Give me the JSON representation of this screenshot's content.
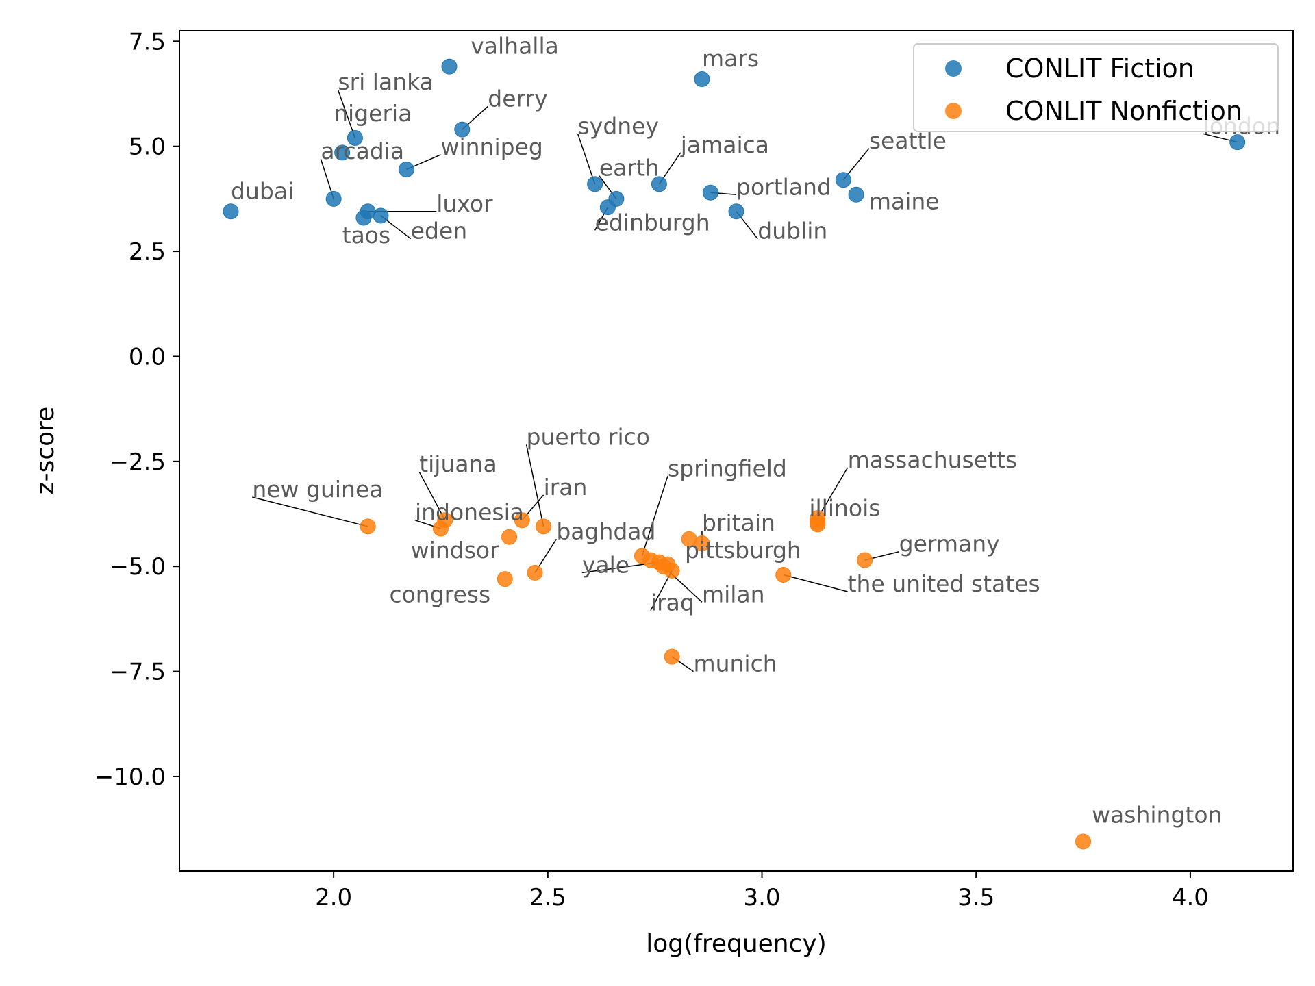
{
  "chart_data": {
    "type": "scatter",
    "title": "",
    "xlabel": "log(frequency)",
    "ylabel": "z-score",
    "xlim": [
      1.64,
      4.24
    ],
    "ylim": [
      -12.25,
      7.75
    ],
    "xticks": [
      2.0,
      2.5,
      3.0,
      3.5,
      4.0
    ],
    "yticks": [
      7.5,
      5.0,
      2.5,
      0.0,
      -2.5,
      -5.0,
      -7.5,
      -10.0
    ],
    "xtick_labels": [
      "2.0",
      "2.5",
      "3.0",
      "3.5",
      "4.0"
    ],
    "ytick_labels": [
      "7.5",
      "5.0",
      "2.5",
      "0.0",
      "−2.5",
      "−5.0",
      "−7.5",
      "−10.0"
    ],
    "grid": false,
    "legend_position": "top-right",
    "series": [
      {
        "name": "CONLIT Fiction",
        "color": "#1f77b4",
        "points": [
          {
            "label": "valhalla",
            "x": 2.27,
            "y": 6.9,
            "lx": 2.32,
            "ly": 7.2
          },
          {
            "label": "mars",
            "x": 2.86,
            "y": 6.6,
            "lx": 2.86,
            "ly": 6.9
          },
          {
            "label": "sri lanka",
            "x": 2.05,
            "y": 5.2,
            "lx": 2.01,
            "ly": 6.35,
            "lead": true
          },
          {
            "label": "derry",
            "x": 2.3,
            "y": 5.4,
            "lx": 2.36,
            "ly": 5.95,
            "lead": true
          },
          {
            "label": "nigeria",
            "x": 2.02,
            "y": 4.85,
            "lx": 2.0,
            "ly": 5.6
          },
          {
            "label": "sydney",
            "x": 2.61,
            "y": 4.1,
            "lx": 2.57,
            "ly": 5.3,
            "lead": true
          },
          {
            "label": "winnipeg",
            "x": 2.17,
            "y": 4.45,
            "lx": 2.25,
            "ly": 4.8,
            "lead": true
          },
          {
            "label": "jamaica",
            "x": 2.76,
            "y": 4.1,
            "lx": 2.81,
            "ly": 4.85,
            "lead": true
          },
          {
            "label": "arcadia",
            "x": 2.0,
            "y": 3.75,
            "lx": 1.97,
            "ly": 4.7,
            "lead": true
          },
          {
            "label": "seattle",
            "x": 3.19,
            "y": 4.2,
            "lx": 3.25,
            "ly": 4.95,
            "lead": true
          },
          {
            "label": "earth",
            "x": 2.66,
            "y": 3.75,
            "lx": 2.62,
            "ly": 4.3,
            "lead": true
          },
          {
            "label": "portland",
            "x": 2.88,
            "y": 3.9,
            "lx": 2.94,
            "ly": 3.85,
            "lead": true
          },
          {
            "label": "maine",
            "x": 3.22,
            "y": 3.85,
            "lx": 3.25,
            "ly": 3.5
          },
          {
            "label": "dubai",
            "x": 1.76,
            "y": 3.45,
            "lx": 1.76,
            "ly": 3.75
          },
          {
            "label": "luxor",
            "x": 2.08,
            "y": 3.45,
            "lx": 2.24,
            "ly": 3.45,
            "lead": true
          },
          {
            "label": "edinburgh",
            "x": 2.64,
            "y": 3.55,
            "lx": 2.61,
            "ly": 3.0,
            "lead": true
          },
          {
            "label": "dublin",
            "x": 2.94,
            "y": 3.45,
            "lx": 2.99,
            "ly": 2.8,
            "lead": true
          },
          {
            "label": "taos",
            "x": 2.07,
            "y": 3.3,
            "lx": 2.02,
            "ly": 2.7
          },
          {
            "label": "eden",
            "x": 2.11,
            "y": 3.35,
            "lx": 2.18,
            "ly": 2.8,
            "lead": true
          },
          {
            "label": "london",
            "x": 4.11,
            "y": 5.1,
            "lx": 4.03,
            "ly": 5.3,
            "lead": true
          }
        ]
      },
      {
        "name": "CONLIT Nonfiction",
        "color": "#ff7f0e",
        "points": [
          {
            "label": "puerto rico",
            "x": 2.49,
            "y": -4.05,
            "lx": 2.45,
            "ly": -2.1,
            "lead": true
          },
          {
            "label": "massachusetts",
            "x": 3.13,
            "y": -3.85,
            "lx": 3.2,
            "ly": -2.65,
            "lead": true
          },
          {
            "label": "tijuana",
            "x": 2.26,
            "y": -3.9,
            "lx": 2.2,
            "ly": -2.75,
            "lead": true
          },
          {
            "label": "springfield",
            "x": 2.72,
            "y": -4.75,
            "lx": 2.78,
            "ly": -2.85,
            "lead": true
          },
          {
            "label": "iran",
            "x": 2.44,
            "y": -3.9,
            "lx": 2.49,
            "ly": -3.3,
            "lead": true
          },
          {
            "label": "new guinea",
            "x": 2.08,
            "y": -4.05,
            "lx": 1.81,
            "ly": -3.35,
            "lead": true
          },
          {
            "label": "illinois",
            "x": 3.13,
            "y": -3.95,
            "lx": 3.11,
            "ly": -3.8
          },
          {
            "label": "indonesia",
            "x": 2.25,
            "y": -4.1,
            "lx": 2.19,
            "ly": -3.9,
            "lead": true
          },
          {
            "label": "britain",
            "x": 2.86,
            "y": -4.45,
            "lx": 2.86,
            "ly": -4.15,
            "lead": true
          },
          {
            "label": "baghdad",
            "x": 2.47,
            "y": -5.15,
            "lx": 2.52,
            "ly": -4.35,
            "lead": true
          },
          {
            "label": "windsor",
            "x": 2.41,
            "y": -4.3,
            "lx": 2.18,
            "ly": -4.8
          },
          {
            "label": "pittsburgh",
            "x": 2.83,
            "y": -4.35,
            "lx": 2.82,
            "ly": -4.8
          },
          {
            "label": "germany",
            "x": 3.24,
            "y": -4.85,
            "lx": 3.32,
            "ly": -4.65,
            "lead": true
          },
          {
            "label": "yale",
            "x": 2.76,
            "y": -4.9,
            "lx": 2.58,
            "ly": -5.15,
            "lead": true
          },
          {
            "label": "congress",
            "x": 2.4,
            "y": -5.3,
            "lx": 2.13,
            "ly": -5.85
          },
          {
            "label": "the united states",
            "x": 3.05,
            "y": -5.2,
            "lx": 3.2,
            "ly": -5.6,
            "lead": true
          },
          {
            "label": "milan",
            "x": 2.77,
            "y": -5.0,
            "lx": 2.86,
            "ly": -5.85,
            "lead": true
          },
          {
            "label": "iraq",
            "x": 2.79,
            "y": -5.1,
            "lx": 2.74,
            "ly": -6.05,
            "lead": true
          },
          {
            "label": "munich",
            "x": 2.79,
            "y": -7.15,
            "lx": 2.84,
            "ly": -7.5,
            "lead": true
          },
          {
            "label": "washington",
            "x": 3.75,
            "y": -11.55,
            "lx": 3.77,
            "ly": -11.1
          },
          {
            "label": "",
            "x": 2.74,
            "y": -4.85
          },
          {
            "label": "",
            "x": 2.78,
            "y": -4.95
          },
          {
            "label": "",
            "x": 3.13,
            "y": -4.0
          }
        ]
      }
    ]
  }
}
